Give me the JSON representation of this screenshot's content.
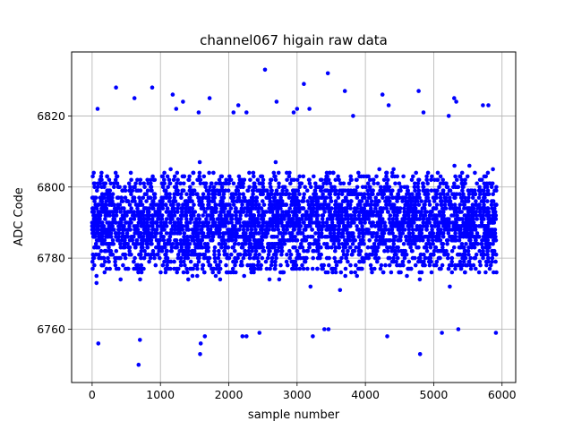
{
  "chart_data": {
    "type": "scatter",
    "title": "channel067 higain raw data",
    "xlabel": "sample number",
    "ylabel": "ADC Code",
    "xlim": [
      -300,
      6200
    ],
    "ylim": [
      6745,
      6838
    ],
    "xticks": [
      0,
      1000,
      2000,
      3000,
      4000,
      5000,
      6000
    ],
    "yticks": [
      6760,
      6780,
      6800,
      6820
    ],
    "xtick_labels": [
      "0",
      "1000",
      "2000",
      "3000",
      "4000",
      "5000",
      "6000"
    ],
    "ytick_labels": [
      "6760",
      "6780",
      "6800",
      "6820"
    ],
    "grid": true,
    "marker_color": "#0000ff",
    "series": [
      {
        "sample_count": 5920,
        "mean": 6790,
        "bulk_range": [
          6772,
          6806
        ],
        "observed_min": 6750,
        "observed_max": 6833,
        "values": [
          [
            2530,
            6833
          ],
          [
            3450,
            6832
          ],
          [
            3100,
            6829
          ],
          [
            350,
            6828
          ],
          [
            880,
            6828
          ],
          [
            3700,
            6827
          ],
          [
            4780,
            6827
          ],
          [
            1180,
            6826
          ],
          [
            4250,
            6826
          ],
          [
            5300,
            6825
          ],
          [
            620,
            6825
          ],
          [
            1720,
            6825
          ],
          [
            2700,
            6824
          ],
          [
            5330,
            6824
          ],
          [
            1330,
            6824
          ],
          [
            5720,
            6823
          ],
          [
            5800,
            6823
          ],
          [
            2140,
            6823
          ],
          [
            4340,
            6823
          ],
          [
            80,
            6822
          ],
          [
            1230,
            6822
          ],
          [
            3000,
            6822
          ],
          [
            3180,
            6822
          ],
          [
            2950,
            6821
          ],
          [
            4850,
            6821
          ],
          [
            1560,
            6821
          ],
          [
            2070,
            6821
          ],
          [
            2260,
            6821
          ],
          [
            3820,
            6820
          ],
          [
            5220,
            6820
          ],
          [
            700,
            6757
          ],
          [
            1650,
            6758
          ],
          [
            2200,
            6758
          ],
          [
            2260,
            6758
          ],
          [
            4320,
            6758
          ],
          [
            3230,
            6758
          ],
          [
            5120,
            6759
          ],
          [
            5910,
            6759
          ],
          [
            2450,
            6759
          ],
          [
            3400,
            6760
          ],
          [
            3460,
            6760
          ],
          [
            5360,
            6760
          ],
          [
            1590,
            6756
          ],
          [
            90,
            6756
          ],
          [
            4800,
            6753
          ],
          [
            1580,
            6753
          ],
          [
            680,
            6750
          ]
        ]
      }
    ]
  }
}
